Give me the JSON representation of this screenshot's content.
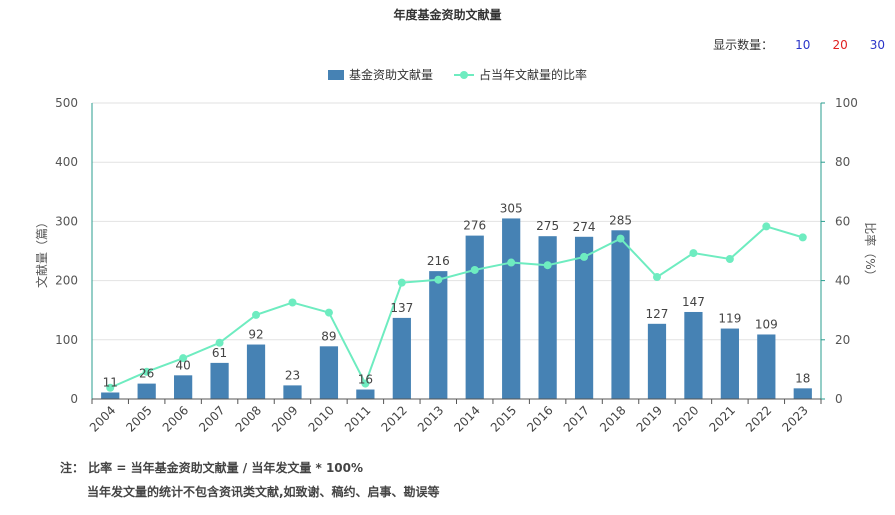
{
  "chart_data": {
    "type": "bar",
    "title": "年度基金资助文献量",
    "categories": [
      "2004",
      "2005",
      "2006",
      "2007",
      "2008",
      "2009",
      "2010",
      "2011",
      "2012",
      "2013",
      "2014",
      "2015",
      "2016",
      "2017",
      "2018",
      "2019",
      "2020",
      "2021",
      "2022",
      "2023"
    ],
    "series": [
      {
        "name": "基金资助文献量",
        "type": "bar",
        "axis": "left",
        "color": "#4682b4",
        "values": [
          11,
          26,
          40,
          61,
          92,
          23,
          89,
          16,
          137,
          216,
          276,
          305,
          275,
          274,
          285,
          127,
          147,
          119,
          109,
          18
        ]
      },
      {
        "name": "占当年文献量的比率",
        "type": "line",
        "axis": "right",
        "color": "#6eecc0",
        "values": [
          3.8,
          9.2,
          13.8,
          19,
          28.4,
          32.6,
          29.2,
          5.2,
          39.3,
          40.3,
          43.6,
          46.1,
          45.2,
          48,
          54.2,
          41.2,
          49.3,
          47.3,
          58.3,
          54.6
        ]
      }
    ],
    "ylabel": "文献量（篇）",
    "ylabel_right": "比率（%）",
    "ylim": [
      0,
      500
    ],
    "ylim_right": [
      0,
      100
    ],
    "yticks": [
      "0",
      "100",
      "200",
      "300",
      "400",
      "500"
    ],
    "yticks_right": [
      "0",
      "20",
      "40",
      "60",
      "80",
      "100"
    ],
    "legend_position": "top-center",
    "grid": true
  },
  "display_count": {
    "label": "显示数量：",
    "options": [
      {
        "label": "10",
        "color": "#2b35c8"
      },
      {
        "label": "20",
        "color": "#e02020"
      },
      {
        "label": "30",
        "color": "#2b35c8"
      }
    ]
  },
  "notes": {
    "line1": "注：  比率 = 当年基金资助文献量 / 当年发文量 * 100%",
    "line2": "当年发文量的统计不包含资讯类文献,如致谢、稿约、启事、勘误等"
  }
}
